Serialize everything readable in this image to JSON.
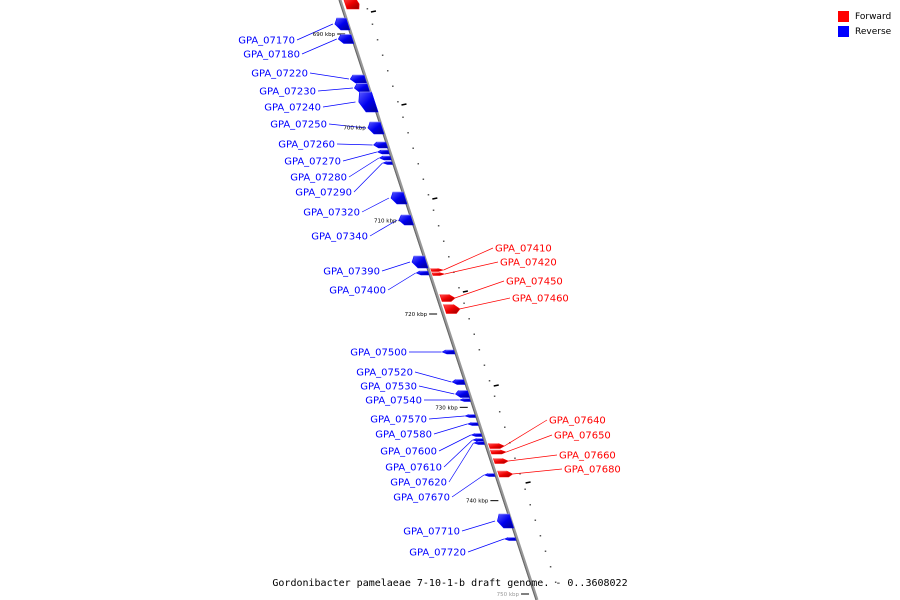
{
  "title": "Gordonibacter pamelaeae 7-10-1-b draft genome. - 0..3608022",
  "legend": {
    "forward_label": "Forward",
    "reverse_label": "Reverse",
    "forward_color": "#ff0000",
    "reverse_color": "#0000ff"
  },
  "scale_marks": [
    {
      "label": "690 kbp",
      "kbp": 690
    },
    {
      "label": "700 kbp",
      "kbp": 700
    },
    {
      "label": "710 kbp",
      "kbp": 710
    },
    {
      "label": "720 kbp",
      "kbp": 720
    },
    {
      "label": "730 kbp",
      "kbp": 730
    },
    {
      "label": "740 kbp",
      "kbp": 740
    },
    {
      "label": "750 kbp",
      "kbp": 750
    }
  ],
  "genes_reverse": [
    {
      "id": "GPA_07170"
    },
    {
      "id": "GPA_07180"
    },
    {
      "id": "GPA_07220"
    },
    {
      "id": "GPA_07230"
    },
    {
      "id": "GPA_07240"
    },
    {
      "id": "GPA_07250"
    },
    {
      "id": "GPA_07260"
    },
    {
      "id": "GPA_07270"
    },
    {
      "id": "GPA_07280"
    },
    {
      "id": "GPA_07290"
    },
    {
      "id": "GPA_07320"
    },
    {
      "id": "GPA_07340"
    },
    {
      "id": "GPA_07390"
    },
    {
      "id": "GPA_07400"
    },
    {
      "id": "GPA_07500"
    },
    {
      "id": "GPA_07520"
    },
    {
      "id": "GPA_07530"
    },
    {
      "id": "GPA_07540"
    },
    {
      "id": "GPA_07570"
    },
    {
      "id": "GPA_07580"
    },
    {
      "id": "GPA_07600"
    },
    {
      "id": "GPA_07610"
    },
    {
      "id": "GPA_07620"
    },
    {
      "id": "GPA_07670"
    },
    {
      "id": "GPA_07710"
    },
    {
      "id": "GPA_07720"
    }
  ],
  "genes_forward": [
    {
      "id": "GPA_07410"
    },
    {
      "id": "GPA_07420"
    },
    {
      "id": "GPA_07450"
    },
    {
      "id": "GPA_07460"
    },
    {
      "id": "GPA_07640"
    },
    {
      "id": "GPA_07650"
    },
    {
      "id": "GPA_07660"
    },
    {
      "id": "GPA_07680"
    }
  ]
}
